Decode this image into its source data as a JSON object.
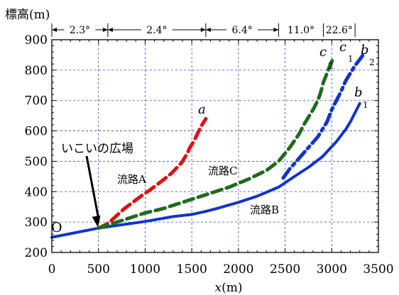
{
  "chart_data": {
    "type": "line",
    "ylabel": "標高(m)",
    "xlabel_italic": "x",
    "xlabel_unit": "(m)",
    "xlim": [
      0,
      3500
    ],
    "ylim": [
      200,
      900
    ],
    "xticks": [
      0,
      500,
      1000,
      1500,
      2000,
      2500,
      3000,
      3500
    ],
    "yticks": [
      200,
      300,
      400,
      500,
      600,
      700,
      800,
      900
    ],
    "grid": true,
    "slope_segments": [
      {
        "label": "2.3°",
        "x0": 0,
        "x1": 600
      },
      {
        "label": "2.4°",
        "x0": 600,
        "x1": 1650
      },
      {
        "label": "6.4°",
        "x0": 1650,
        "x1": 2430
      },
      {
        "label": "11.0°",
        "x0": 2430,
        "x1": 2910
      },
      {
        "label": "22.6°",
        "x0": 2910,
        "x1": 3250
      }
    ],
    "series": [
      {
        "id": "A",
        "label": "流路A",
        "color": "#dd1111",
        "dash": "dashed",
        "x": [
          500,
          570,
          620,
          780,
          1000,
          1050,
          1200,
          1280,
          1390,
          1450,
          1480,
          1520,
          1560,
          1600,
          1650
        ],
        "y": [
          280,
          290,
          300,
          345,
          395,
          405,
          440,
          460,
          495,
          525,
          545,
          565,
          590,
          615,
          640
        ]
      },
      {
        "id": "B",
        "label": "流路B",
        "color": "#1133cc",
        "dash": "solid",
        "x": [
          0,
          500,
          1000,
          1300,
          1500,
          1650,
          1750,
          2000,
          2200,
          2430,
          2600,
          2750,
          2900,
          3050,
          3150,
          3200,
          3250,
          3300
        ],
        "y": [
          250,
          280,
          302,
          318,
          325,
          335,
          343,
          365,
          385,
          415,
          450,
          480,
          515,
          565,
          605,
          630,
          660,
          690
        ]
      },
      {
        "id": "C",
        "label": "流路C",
        "color": "#1e6b1e",
        "dash": "dashed",
        "x": [
          500,
          700,
          1000,
          1200,
          1400,
          1650,
          1900,
          2100,
          2300,
          2430,
          2550,
          2650,
          2700,
          2750,
          2800,
          2850,
          2880,
          2910,
          2950,
          2980,
          3010
        ],
        "y": [
          280,
          300,
          330,
          345,
          365,
          390,
          415,
          440,
          470,
          500,
          545,
          590,
          620,
          645,
          670,
          700,
          725,
          760,
          790,
          815,
          835
        ]
      },
      {
        "id": "B2",
        "label": "b2",
        "color": "#1133cc",
        "dash": "dashdot",
        "x": [
          2480,
          2550,
          2650,
          2750,
          2850,
          2950,
          3000,
          3050,
          3100,
          3150,
          3200,
          3250,
          3300,
          3330
        ],
        "y": [
          445,
          475,
          510,
          545,
          580,
          630,
          670,
          700,
          730,
          765,
          790,
          815,
          835,
          848
        ]
      }
    ],
    "annotations": [
      {
        "text": "いこいの広場",
        "x": 495,
        "y": 278
      },
      {
        "text": "O"
      }
    ],
    "endpoint_labels": [
      {
        "letter": "a",
        "sub": ""
      },
      {
        "letter": "c",
        "sub": "2"
      },
      {
        "letter": "c",
        "sub": "1"
      },
      {
        "letter": "b",
        "sub": "2"
      },
      {
        "letter": "b",
        "sub": "1"
      }
    ]
  }
}
